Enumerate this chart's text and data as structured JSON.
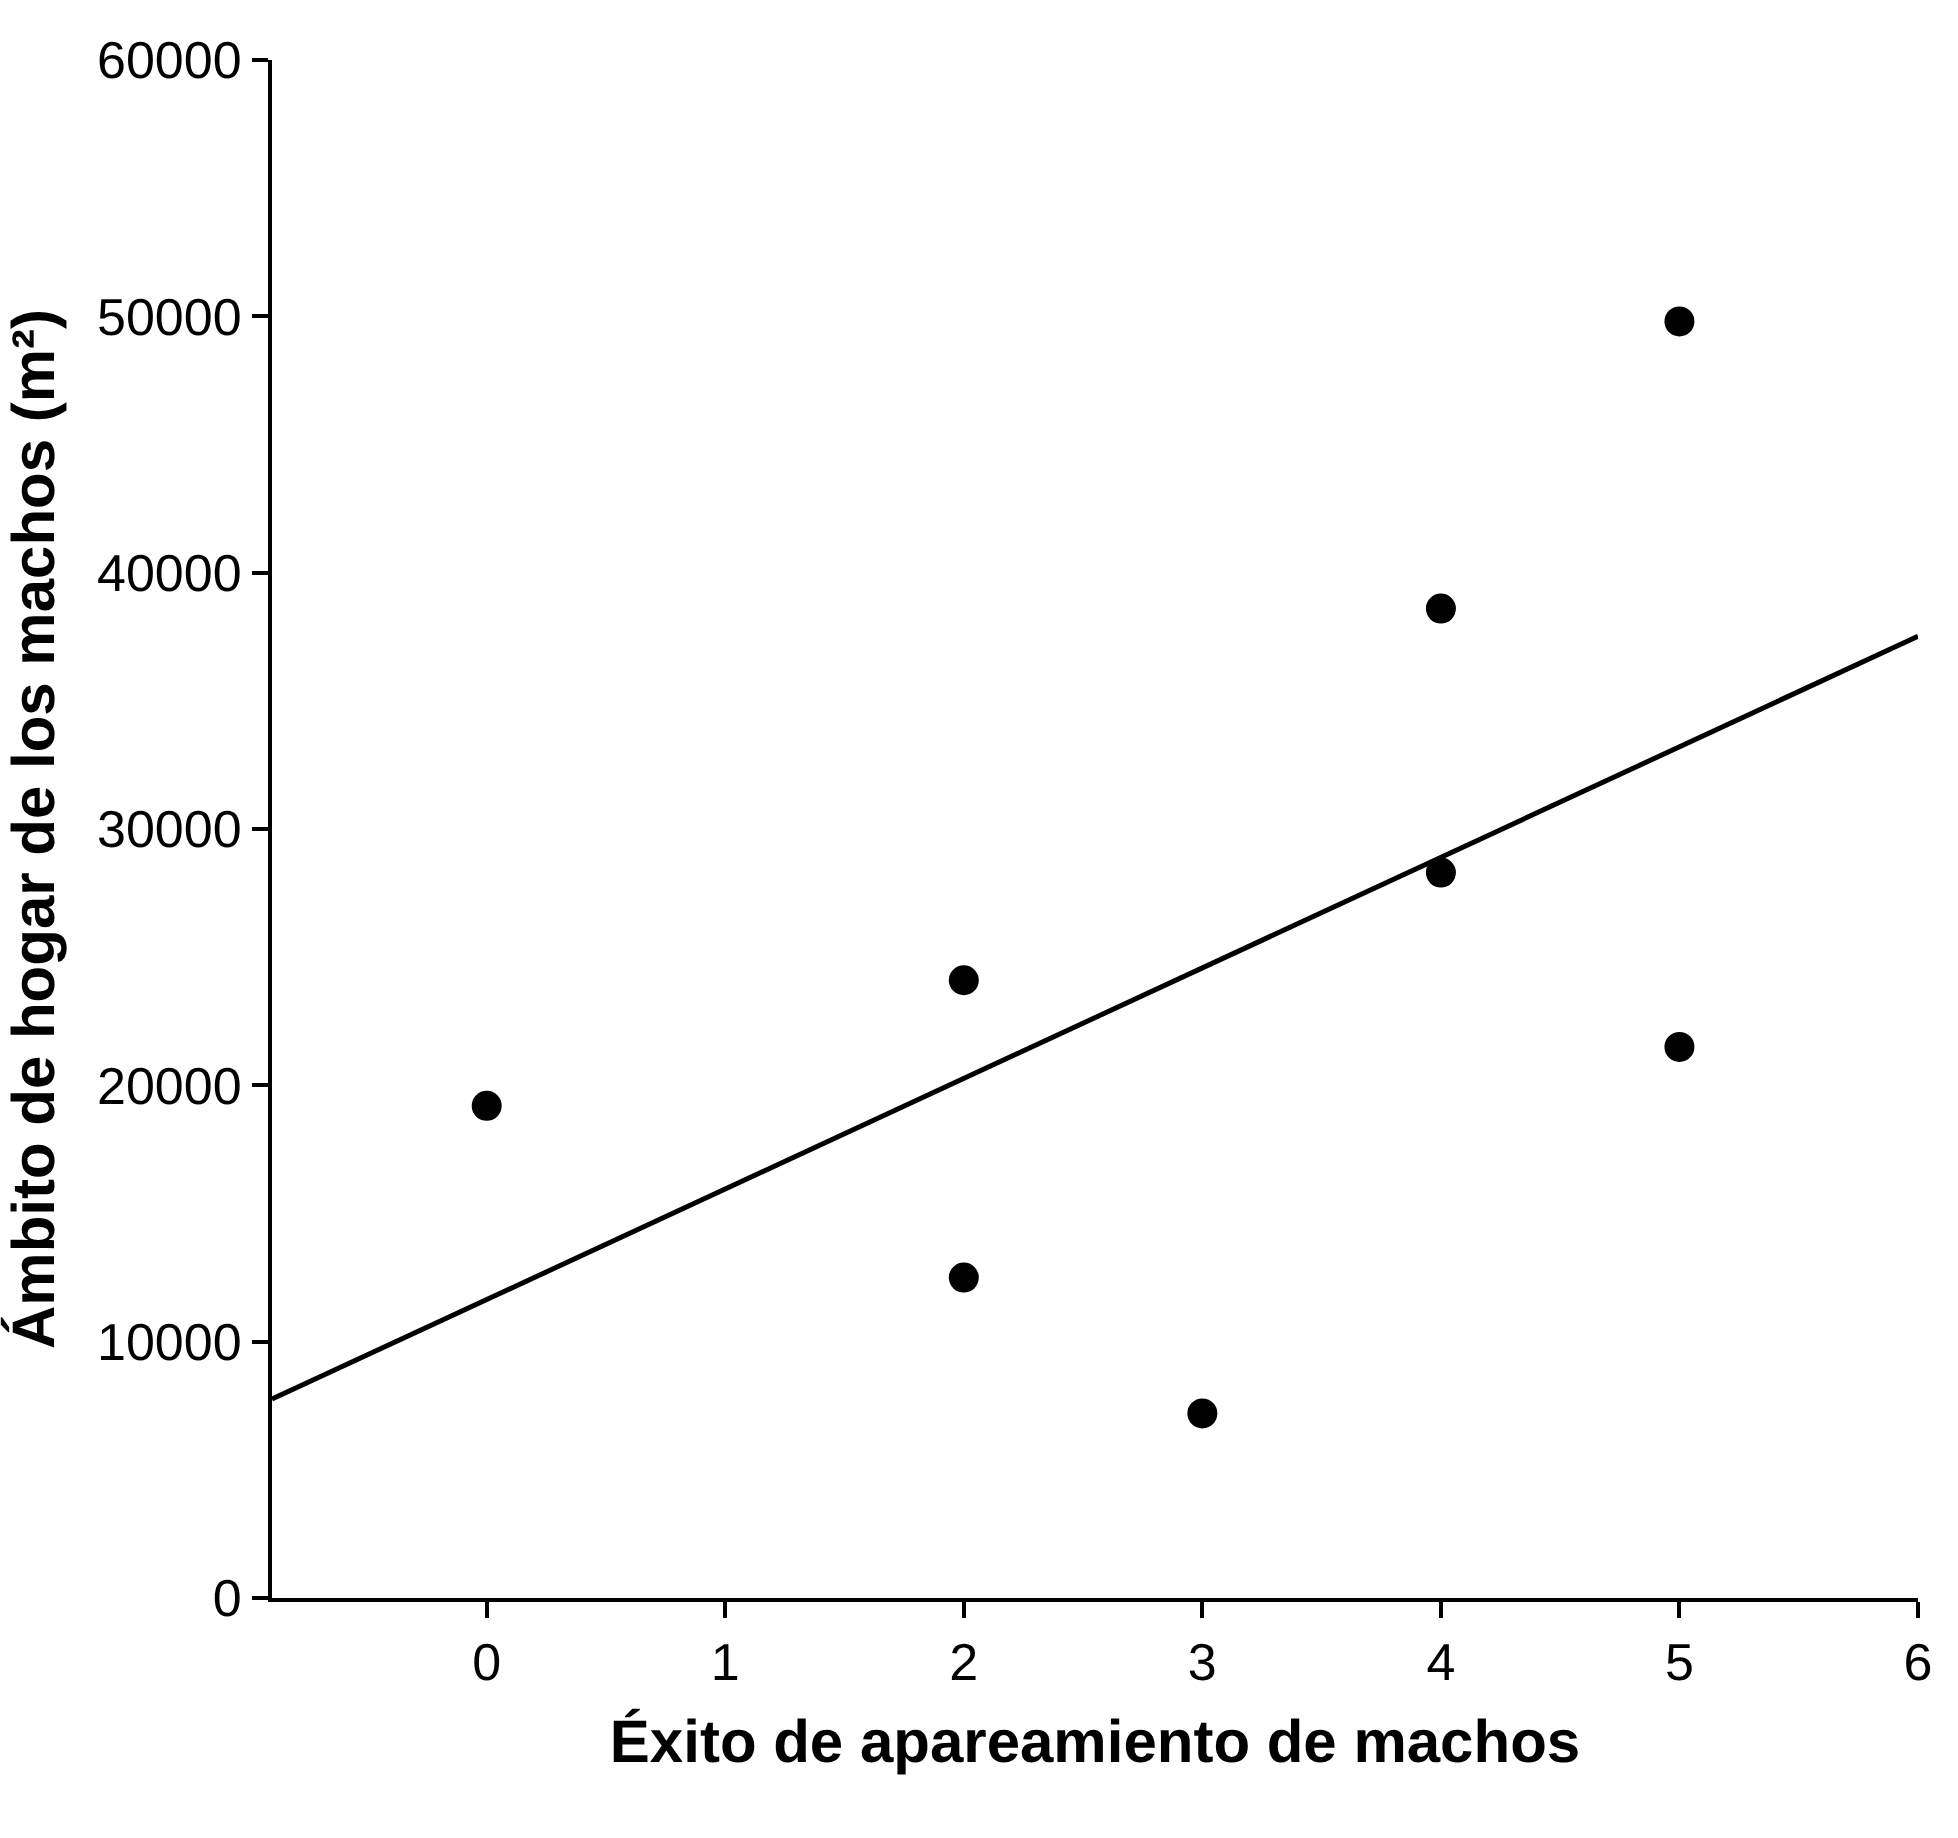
{
  "chart_data": {
    "type": "scatter",
    "xlabel": "Éxito de apareamiento de machos",
    "ylabel": "Ámbito de hogar de los machos (m²)",
    "xlim": [
      -0.9,
      6
    ],
    "xticks": [
      0,
      1,
      2,
      3,
      4,
      5,
      6
    ],
    "ylim": [
      0,
      60000
    ],
    "yticks": [
      0,
      10000,
      20000,
      30000,
      40000,
      50000,
      60000
    ],
    "marker": "circle",
    "series": [
      {
        "color": "#000000",
        "x": [
          0,
          2,
          2,
          3,
          4,
          4,
          5,
          5
        ],
        "values": [
          19200,
          24100,
          12500,
          7200,
          38600,
          28300,
          49800,
          21500
        ]
      },
      {
        "type": "line",
        "color": "#000000",
        "marker": "none",
        "line_style": "solid",
        "x": [
          -0.9,
          6
        ],
        "values": [
          7760,
          37520
        ]
      }
    ]
  }
}
